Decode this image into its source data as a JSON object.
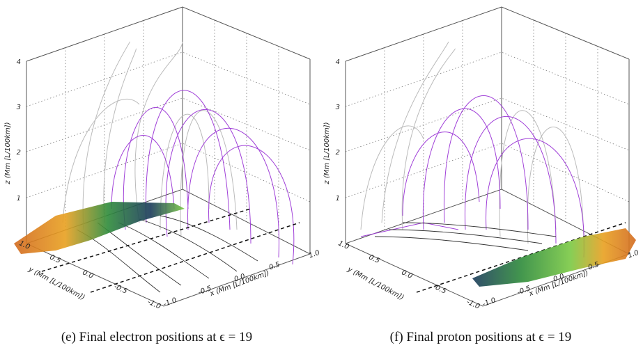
{
  "panels": [
    {
      "caption": "(e) Final electron positions at ϵ = 19",
      "z_label": "z (Mm [L/100km])",
      "y_label": "y (Mm [L/100km])",
      "x_label": "x (Mm [L/100km])",
      "z_ticks": [
        "1",
        "2",
        "3",
        "4"
      ],
      "y_ticks": [
        "1.0",
        "0.5",
        "0.0",
        "-0.5",
        "-1.0"
      ],
      "x_ticks": [
        "-1.0",
        "-0.5",
        "0.0",
        "0.5",
        "1.0"
      ]
    },
    {
      "caption": "(f) Final proton positions at ϵ = 19",
      "z_label": "z (Mm [L/100km])",
      "y_label": "y (Mm [L/100km])",
      "x_label": "x (Mm [L/100km])",
      "z_ticks": [
        "1",
        "2",
        "3",
        "4"
      ],
      "y_ticks": [
        "1.0",
        "0.5",
        "0.0",
        "-0.5",
        "-1.0"
      ],
      "x_ticks": [
        "-1.0",
        "-0.5",
        "0.0",
        "0.5",
        "1.0"
      ]
    }
  ]
}
